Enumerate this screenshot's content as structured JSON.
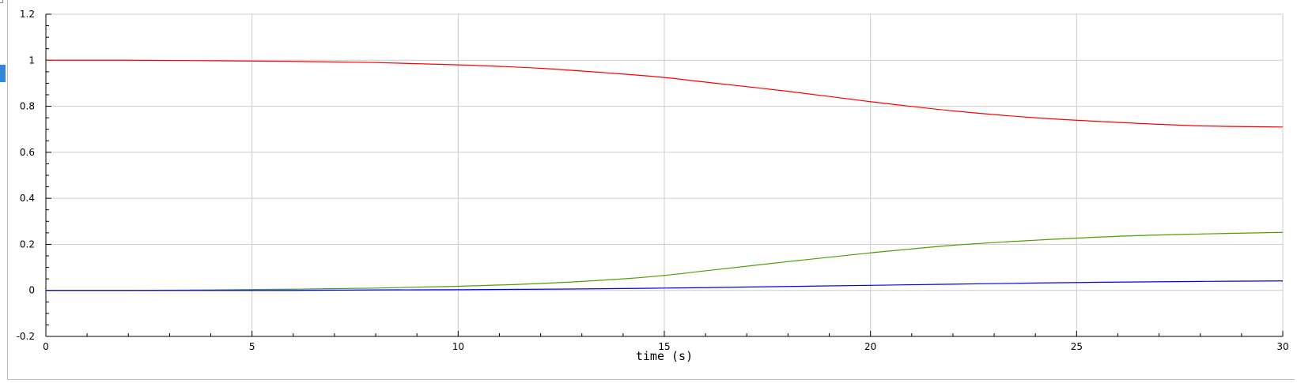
{
  "chart_data": {
    "type": "line",
    "title": "",
    "xlabel": "time (s)",
    "ylabel": "",
    "xlim": [
      0,
      30
    ],
    "ylim": [
      -0.2,
      1.2
    ],
    "xticks": [
      0,
      5,
      10,
      15,
      20,
      25,
      30
    ],
    "yticks": [
      -0.2,
      0,
      0.2,
      0.4,
      0.6,
      0.8,
      1,
      1.2
    ],
    "xtick_labels": [
      "0",
      "5",
      "10",
      "15",
      "20",
      "25",
      "30"
    ],
    "ytick_labels": [
      "-0.2",
      "0",
      "0.2",
      "0.4",
      "0.6",
      "0.8",
      "1",
      "1.2"
    ],
    "grid": true,
    "legend": "none",
    "x": [
      0,
      2,
      4,
      6,
      8,
      10,
      12,
      14,
      15,
      16,
      18,
      20,
      22,
      24,
      26,
      28,
      30
    ],
    "series": [
      {
        "color": "#ff0000",
        "values": [
          1.0,
          1.0,
          0.998,
          0.995,
          0.99,
          0.98,
          0.965,
          0.94,
          0.925,
          0.905,
          0.865,
          0.82,
          0.78,
          0.75,
          0.73,
          0.715,
          0.71
        ]
      },
      {
        "color": "#4aa000",
        "values": [
          0.0,
          0.0,
          0.002,
          0.005,
          0.01,
          0.018,
          0.03,
          0.05,
          0.065,
          0.085,
          0.125,
          0.163,
          0.196,
          0.218,
          0.235,
          0.245,
          0.252
        ]
      },
      {
        "color": "#0000ff",
        "values": [
          0.0,
          0.0,
          0.0,
          0.0,
          0.002,
          0.003,
          0.005,
          0.008,
          0.01,
          0.012,
          0.017,
          0.022,
          0.027,
          0.032,
          0.036,
          0.039,
          0.041
        ]
      }
    ]
  }
}
